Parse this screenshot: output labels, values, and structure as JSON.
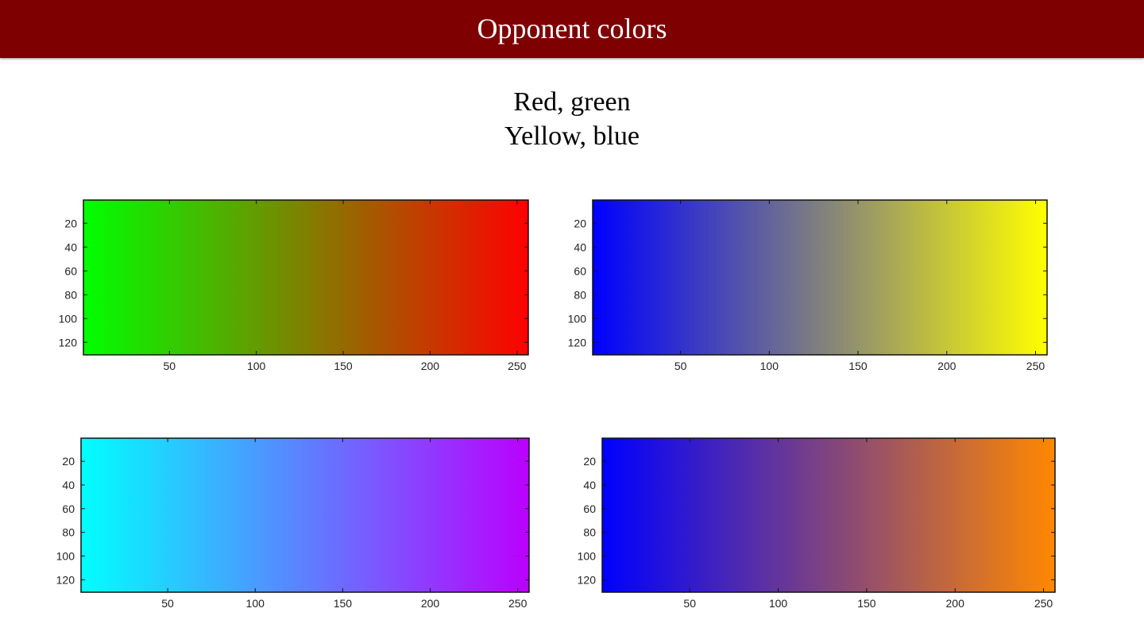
{
  "slide": {
    "title": "Opponent colors",
    "subtitle_lines": [
      "Red, green",
      "Yellow, blue"
    ]
  },
  "chart_data": [
    {
      "type": "heatmap",
      "colormap": {
        "start": "#00ff00",
        "end": "#ff0000"
      },
      "x_ticks": [
        50,
        100,
        150,
        200,
        250
      ],
      "y_ticks": [
        20,
        40,
        60,
        80,
        100,
        120
      ],
      "xlim": [
        0.5,
        256.5
      ],
      "ylim": [
        0.5,
        130.5
      ]
    },
    {
      "type": "heatmap",
      "colormap": {
        "start": "#0000ff",
        "end": "#ffff00"
      },
      "x_ticks": [
        50,
        100,
        150,
        200,
        250
      ],
      "y_ticks": [
        20,
        40,
        60,
        80,
        100,
        120
      ],
      "xlim": [
        0.5,
        256.5
      ],
      "ylim": [
        0.5,
        130.5
      ]
    },
    {
      "type": "heatmap",
      "colormap": {
        "start": "#00ffff",
        "end": "#bb00ff"
      },
      "x_ticks": [
        50,
        100,
        150,
        200,
        250
      ],
      "y_ticks": [
        20,
        40,
        60,
        80,
        100,
        120
      ],
      "xlim": [
        0.5,
        256.5
      ],
      "ylim": [
        0.5,
        130.5
      ]
    },
    {
      "type": "heatmap",
      "colormap": {
        "start": "#0000ff",
        "end": "#ff8800"
      },
      "x_ticks": [
        50,
        100,
        150,
        200,
        250
      ],
      "y_ticks": [
        20,
        40,
        60,
        80,
        100,
        120
      ],
      "xlim": [
        0.5,
        256.5
      ],
      "ylim": [
        0.5,
        130.5
      ]
    }
  ]
}
